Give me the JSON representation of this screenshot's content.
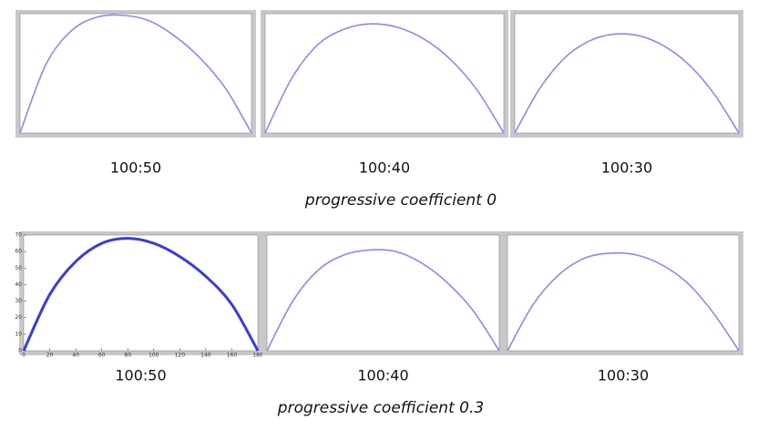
{
  "chart_data": [
    {
      "type": "line",
      "title": "100:50",
      "x": [
        0,
        20,
        40,
        60,
        80,
        100,
        120,
        140,
        160,
        180
      ],
      "values": [
        0,
        40,
        60,
        68,
        69,
        66,
        57,
        44,
        26,
        0
      ],
      "color": "#8a8af0",
      "xlim": [
        0,
        180
      ],
      "ylim": [
        0,
        70
      ]
    },
    {
      "type": "line",
      "title": "100:40",
      "x": [
        0,
        20,
        40,
        60,
        80,
        100,
        120,
        140,
        160,
        180
      ],
      "values": [
        0,
        32,
        52,
        61,
        64,
        62,
        55,
        43,
        25,
        0
      ],
      "color": "#8a8af0",
      "xlim": [
        0,
        180
      ],
      "ylim": [
        0,
        70
      ]
    },
    {
      "type": "line",
      "title": "100:30",
      "x": [
        0,
        20,
        40,
        60,
        80,
        100,
        120,
        140,
        160,
        180
      ],
      "values": [
        0,
        26,
        44,
        54,
        58,
        57,
        51,
        40,
        23,
        0
      ],
      "color": "#8a8af0",
      "xlim": [
        0,
        180
      ],
      "ylim": [
        0,
        70
      ]
    },
    {
      "type": "line",
      "title": "100:50",
      "x": [
        0,
        20,
        40,
        60,
        80,
        100,
        120,
        140,
        160,
        180
      ],
      "values": [
        0,
        34,
        54,
        65,
        68,
        65,
        57,
        45,
        28,
        0
      ],
      "color": "#3a3ae0",
      "xlim": [
        0,
        180
      ],
      "ylim": [
        0,
        70
      ],
      "xticks": [
        0,
        20,
        40,
        60,
        80,
        100,
        120,
        140,
        160,
        180
      ],
      "yticks": [
        0,
        10,
        20,
        30,
        40,
        50,
        60,
        70
      ]
    },
    {
      "type": "line",
      "title": "100:40",
      "x": [
        0,
        20,
        40,
        60,
        80,
        100,
        120,
        140,
        160,
        180
      ],
      "values": [
        0,
        30,
        49,
        58,
        61,
        60,
        53,
        41,
        24,
        0
      ],
      "color": "#8a8af0",
      "xlim": [
        0,
        180
      ],
      "ylim": [
        0,
        70
      ]
    },
    {
      "type": "line",
      "title": "100:30",
      "x": [
        0,
        20,
        40,
        60,
        80,
        100,
        120,
        140,
        160,
        180
      ],
      "values": [
        0,
        28,
        46,
        56,
        59,
        58,
        52,
        41,
        23,
        0
      ],
      "color": "#8a8af0",
      "xlim": [
        0,
        180
      ],
      "ylim": [
        0,
        70
      ]
    }
  ],
  "group_captions": [
    "progressive coefficient 0",
    "progressive coefficient 0.3"
  ]
}
